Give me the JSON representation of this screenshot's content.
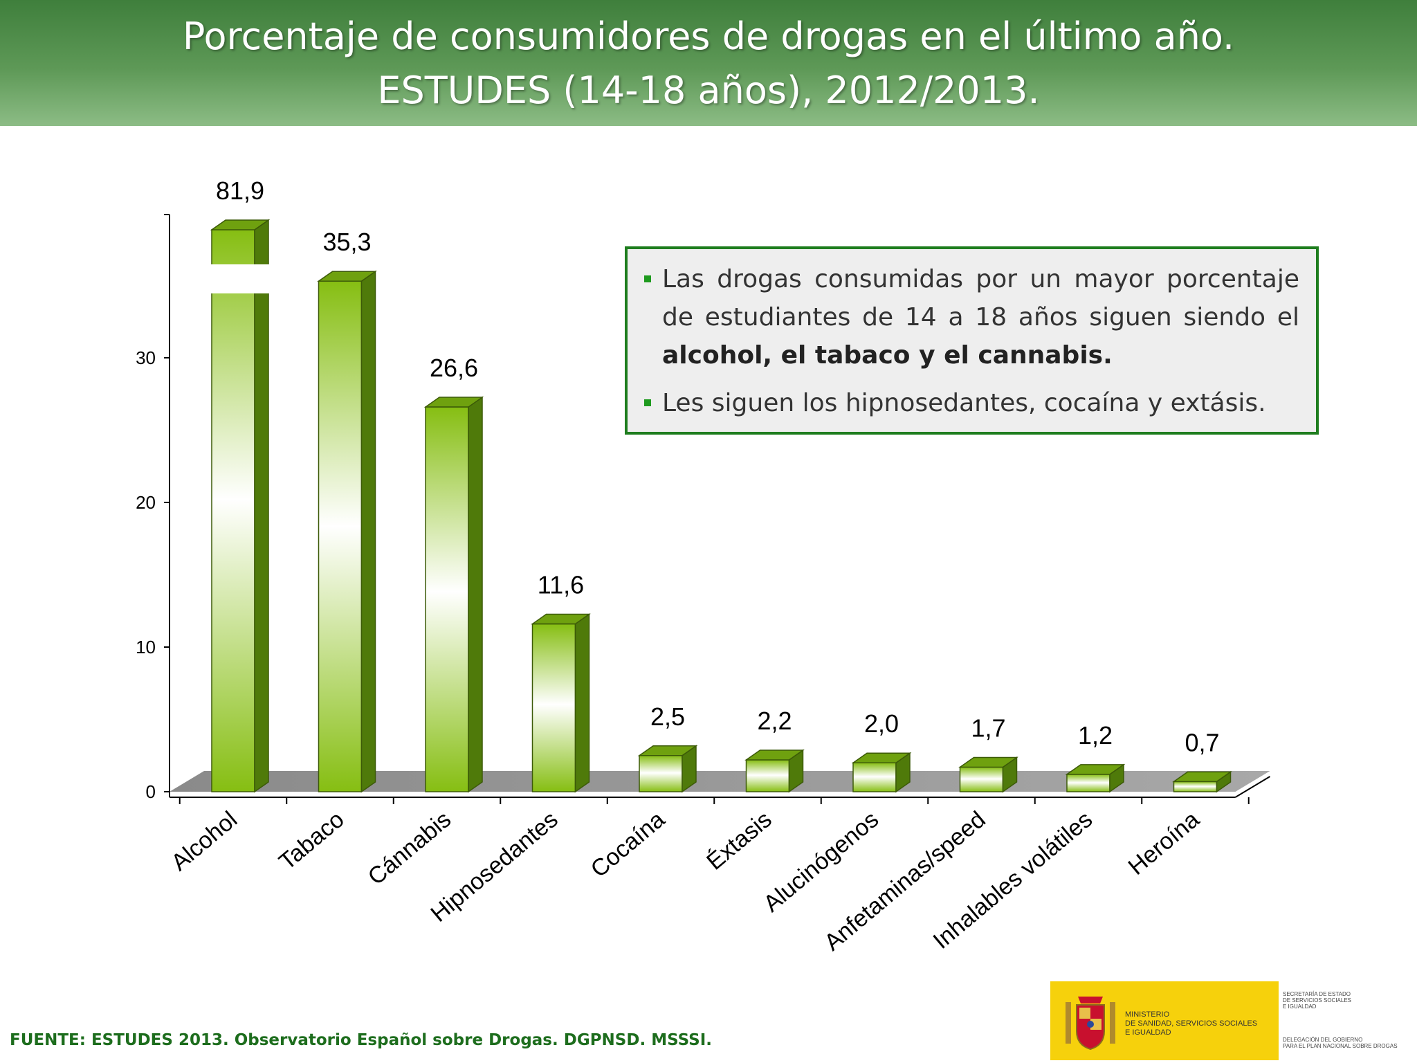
{
  "slide": {
    "title_line1": "Porcentaje de consumidores de drogas en el último año.",
    "title_line2": "ESTUDES (14-18 años), 2012/2013.",
    "source": "FUENTE: ESTUDES 2013. Observatorio Español sobre Drogas. DGPNSD. MSSSI."
  },
  "callout": {
    "bullet1_text": "Las drogas consumidas por un mayor porcentaje de estudiantes de 14 a 18 años siguen siendo el",
    "bullet1_bold": "alcohol, el tabaco y el cannabis.",
    "bullet2_text": "Les siguen los hipnosedantes, cocaína y extásis."
  },
  "logo": {
    "ministry_line1": "MINISTERIO",
    "ministry_line2": "DE SANIDAD, SERVICIOS SOCIALES",
    "ministry_line3": "E IGUALDAD",
    "secretaria_line1": "SECRETARÍA DE ESTADO",
    "secretaria_line2": "DE SERVICIOS SOCIALES",
    "secretaria_line3": "E IGUALDAD",
    "delegacion_line1": "DELEGACIÓN DEL GOBIERNO",
    "delegacion_line2": "PARA EL PLAN NACIONAL SOBRE DROGAS"
  },
  "colors": {
    "title_green": "#4f8c49",
    "bar_green": "#8bc21a",
    "bar_top": "#6fa10f",
    "bar_side": "#4f7a0a",
    "callout_border": "#1e7d1e",
    "source_text": "#1d6d1d"
  },
  "chart_data": {
    "type": "bar",
    "title": "Porcentaje de consumidores de drogas en el último año. ESTUDES (14-18 años), 2012/2013.",
    "xlabel": "",
    "ylabel": "",
    "ylim": [
      0,
      40
    ],
    "yticks": [
      0,
      10,
      20,
      30
    ],
    "categories": [
      "Alcohol",
      "Tabaco",
      "Cánnabis",
      "Hipnosedantes",
      "Cocaína",
      "Éxtasis",
      "Alucinógenos",
      "Anfetaminas/speed",
      "Inhalables volátiles",
      "Heroína"
    ],
    "values": [
      81.9,
      35.3,
      26.6,
      11.6,
      2.5,
      2.2,
      2.0,
      1.7,
      1.2,
      0.7
    ],
    "value_labels": [
      "81,9",
      "35,3",
      "26,6",
      "11,6",
      "2,5",
      "2,2",
      "2,0",
      "1,7",
      "1,2",
      "0,7"
    ],
    "axis_break_on": "Alcohol",
    "grid": false
  }
}
